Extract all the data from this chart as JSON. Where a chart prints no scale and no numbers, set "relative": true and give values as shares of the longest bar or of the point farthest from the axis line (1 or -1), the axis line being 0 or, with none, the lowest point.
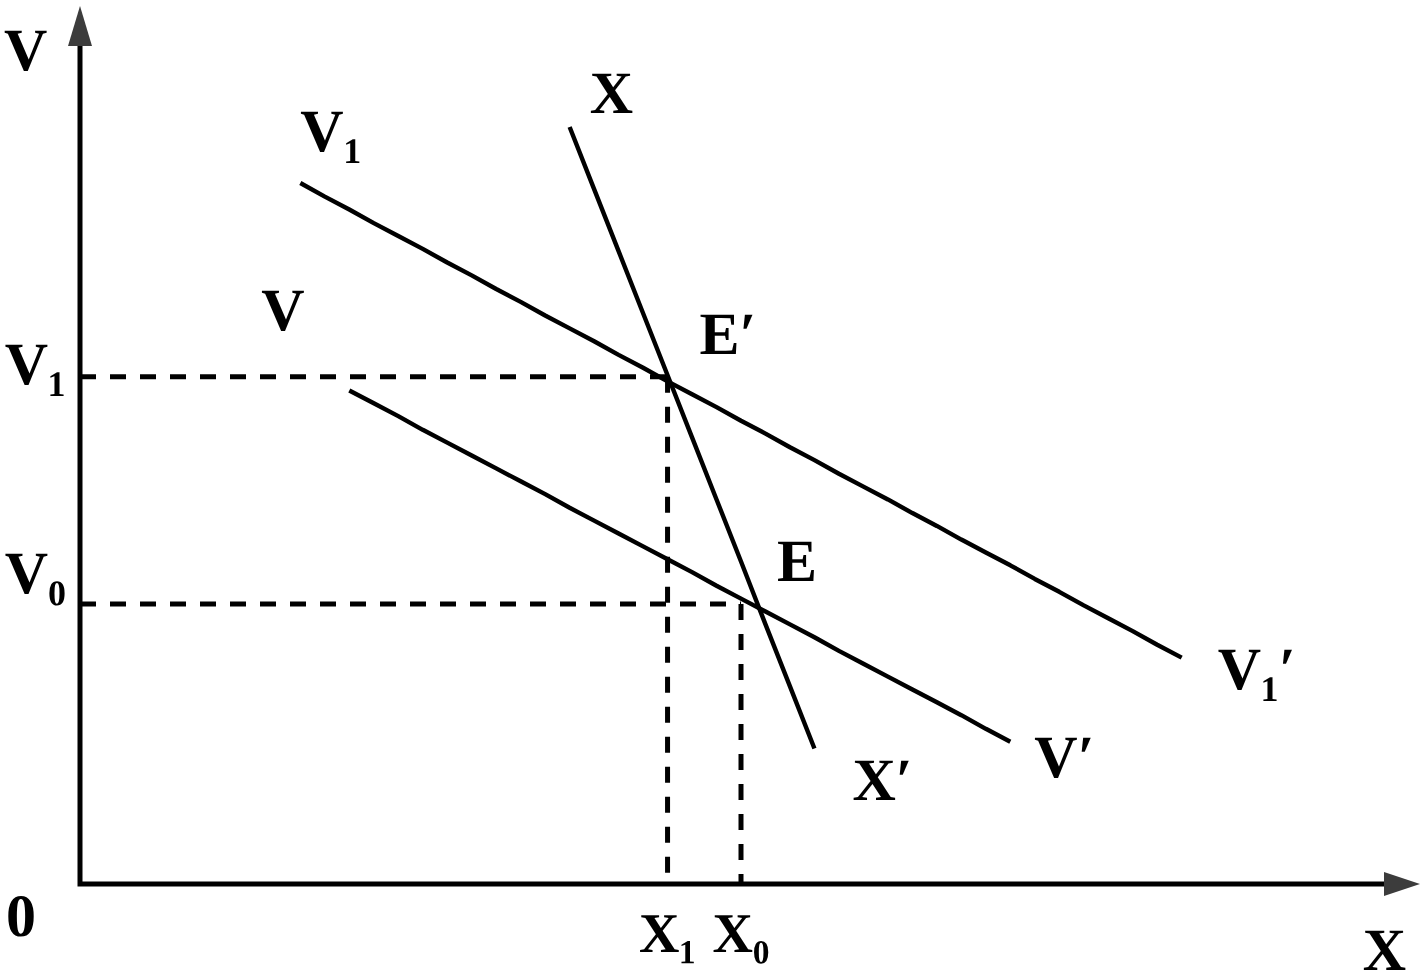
{
  "chart_data": {
    "type": "line",
    "relative": true,
    "xlabel": "X",
    "ylabel": "V",
    "categories": [
      null,
      null,
      null,
      null,
      null,
      null,
      null,
      null,
      null,
      null,
      null,
      null,
      null,
      null,
      null,
      null,
      null,
      null,
      null,
      null,
      null,
      null,
      null,
      null,
      "X₁",
      null,
      null,
      "X₀",
      null,
      null,
      null,
      null,
      null,
      null,
      null,
      null,
      null,
      null,
      null,
      null,
      null,
      null,
      null,
      null,
      null,
      null,
      null,
      null,
      null,
      null,
      null,
      null,
      null,
      null,
      null
    ],
    "series": [
      {
        "name": "V₁",
        "color": "#000000",
        "line_style": "solid",
        "values": [
          null,
          null,
          null,
          null,
          null,
          null,
          null,
          null,
          null,
          0.926,
          0.908,
          0.891,
          0.873,
          0.856,
          0.839,
          0.821,
          0.804,
          0.786,
          0.769,
          0.751,
          0.734,
          0.717,
          0.699,
          0.682,
          0.664,
          0.647,
          0.63,
          0.612,
          0.595,
          0.577,
          0.56,
          0.542,
          0.525,
          0.508,
          0.49,
          0.473,
          0.455,
          0.438,
          0.421,
          0.403,
          0.386,
          0.368,
          0.351,
          0.334,
          0.316,
          0.299,
          null,
          null,
          null,
          null,
          null,
          null,
          null,
          null,
          null
        ]
      },
      {
        "name": "V",
        "color": "#000000",
        "line_style": "solid",
        "values": [
          null,
          null,
          null,
          null,
          null,
          null,
          null,
          null,
          null,
          null,
          null,
          0.652,
          0.635,
          0.618,
          0.6,
          0.583,
          0.566,
          0.549,
          0.532,
          0.515,
          0.497,
          0.48,
          0.463,
          0.446,
          0.429,
          0.412,
          0.394,
          0.377,
          0.36,
          0.343,
          0.326,
          0.308,
          0.291,
          0.274,
          0.257,
          0.24,
          0.223,
          0.205,
          0.188,
          null,
          null,
          null,
          null,
          null,
          null,
          null,
          null,
          null,
          null,
          null,
          null,
          null,
          null,
          null,
          null
        ]
      },
      {
        "name": "X",
        "color": "#000000",
        "line_style": "solid",
        "values": [
          null,
          null,
          null,
          null,
          null,
          null,
          null,
          null,
          null,
          null,
          null,
          null,
          null,
          null,
          null,
          null,
          null,
          null,
          null,
          null,
          1,
          0.918,
          0.836,
          0.754,
          0.672,
          0.59,
          0.508,
          0.426,
          0.343,
          0.261,
          0.179,
          null,
          null,
          null,
          null,
          null,
          null,
          null,
          null,
          null,
          null,
          null,
          null,
          null,
          null,
          null,
          null,
          null,
          null,
          null,
          null,
          null,
          null,
          null,
          null
        ]
      },
      {
        "name": "V₁",
        "color": "#000000",
        "line_style": "dashed",
        "values": [
          0.67,
          0.67,
          0.67,
          0.67,
          0.67,
          0.67,
          0.67,
          0.67,
          0.67,
          0.67,
          0.67,
          0.67,
          0.67,
          0.67,
          0.67,
          0.67,
          0.67,
          0.67,
          0.67,
          0.67,
          0.67,
          0.67,
          0.67,
          0.67,
          0.67,
          null,
          null,
          null,
          null,
          null,
          null,
          null,
          null,
          null,
          null,
          null,
          null,
          null,
          null,
          null,
          null,
          null,
          null,
          null,
          null,
          null,
          null,
          null,
          null,
          null,
          null,
          null,
          null,
          null,
          null
        ]
      },
      {
        "name": "V₀",
        "color": "#000000",
        "line_style": "dashed",
        "values": [
          0.37,
          0.37,
          0.37,
          0.37,
          0.37,
          0.37,
          0.37,
          0.37,
          0.37,
          0.37,
          0.37,
          0.37,
          0.37,
          0.37,
          0.37,
          0.37,
          0.37,
          0.37,
          0.37,
          0.37,
          0.37,
          0.37,
          0.37,
          0.37,
          0.37,
          0.37,
          0.37,
          0.37,
          null,
          null,
          null,
          null,
          null,
          null,
          null,
          null,
          null,
          null,
          null,
          null,
          null,
          null,
          null,
          null,
          null,
          null,
          null,
          null,
          null,
          null,
          null,
          null,
          null,
          null,
          null
        ]
      },
      {
        "color": "#000000",
        "line_style": "dashed",
        "x": [
          "X₁",
          "X₁"
        ],
        "values": [
          0.67,
          0
        ]
      },
      {
        "color": "#000000",
        "line_style": "dashed",
        "x": [
          "X₀",
          "X₀"
        ],
        "values": [
          0.37,
          0
        ]
      }
    ],
    "annotations": [
      "V₁′",
      "V′",
      "X′",
      {
        "text": "E′",
        "x": "X₁",
        "y": 0.67
      },
      {
        "text": "E",
        "x": "X₀",
        "y": 0.37
      },
      "0"
    ]
  }
}
